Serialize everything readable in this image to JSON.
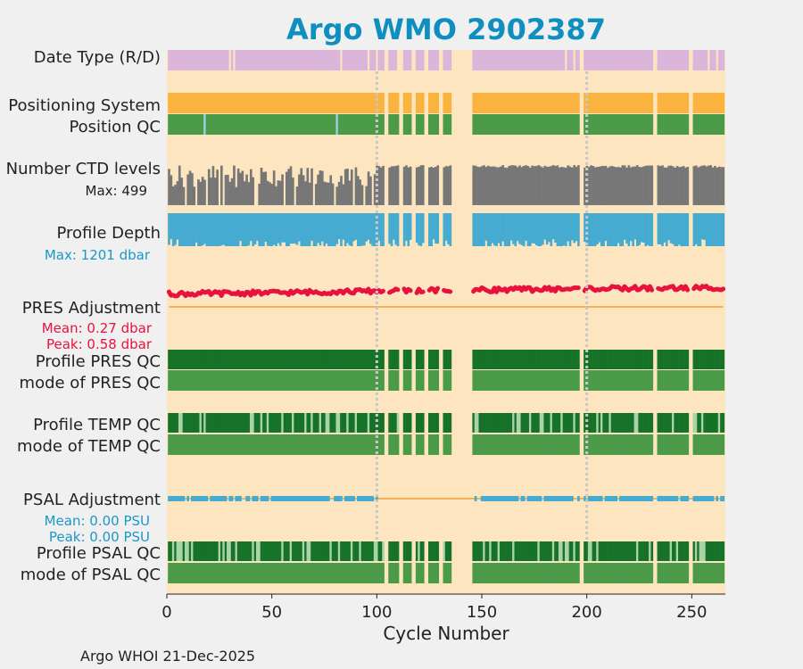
{
  "chart_data": {
    "type": "bar",
    "title": "Argo WMO 2902387",
    "xlabel": "Cycle Number",
    "xlim": [
      0,
      266
    ],
    "xticks": [
      0,
      50,
      100,
      150,
      200,
      250
    ],
    "vlines": [
      100,
      200
    ],
    "missing_ranges": [
      [
        104,
        105
      ],
      [
        111,
        112
      ],
      [
        117,
        118
      ],
      [
        123,
        124
      ],
      [
        130,
        131
      ],
      [
        136,
        145
      ],
      [
        197,
        198
      ],
      [
        232,
        233
      ],
      [
        249,
        250
      ]
    ],
    "row_labels": {
      "date_type": "Date Type (R/D)",
      "positioning": "Positioning System",
      "position_qc": "Position QC",
      "ctd_levels": "Number CTD levels",
      "profile_depth": "Profile Depth",
      "pres_adj": "PRES Adjustment",
      "pres_qc": "Profile PRES QC",
      "pres_qc_mode": "mode of PRES QC",
      "temp_qc": "Profile TEMP QC",
      "temp_qc_mode": "mode of TEMP QC",
      "psal_adj": "PSAL Adjustment",
      "psal_qc": "Profile PSAL QC",
      "psal_qc_mode": "mode of PSAL QC"
    },
    "annotations": {
      "ctd_max": "Max: 499",
      "depth_max": "Max: 1201 dbar",
      "pres_mean": "Mean: 0.27 dbar",
      "pres_peak": "Peak: 0.58 dbar",
      "psal_mean": "Mean: 0.00 PSU",
      "psal_peak": "Peak: 0.00 PSU"
    },
    "stats": {
      "ctd_levels_max": 499,
      "profile_depth_max_dbar": 1201,
      "pres_adjustment_mean_dbar": 0.27,
      "pres_adjustment_peak_dbar": 0.58,
      "psal_adjustment_mean_psu": 0.0,
      "psal_adjustment_peak_psu": 0.0
    },
    "pres_adjustment_trend_dbar": [
      [
        0,
        0.22
      ],
      [
        50,
        0.24
      ],
      [
        100,
        0.27
      ],
      [
        150,
        0.29
      ],
      [
        200,
        0.31
      ],
      [
        266,
        0.33
      ]
    ],
    "qc_flag_1_cycles_position": [
      18,
      81
    ],
    "colors": {
      "background": "#fde6bf",
      "date_type": "#dbb5da",
      "positioning": "#fbb33f",
      "qc_good": "#4a9a48",
      "qc_good_dark": "#167228",
      "qc_light": "#a8d4a8",
      "position_flag": "#a0d0e0",
      "ctd": "#777777",
      "depth": "#46abd0",
      "pres_adj": "#e8123f",
      "psal_adj": "#46abd0",
      "zero_line": "#f0a030",
      "title": "#0f8fbf",
      "depth_label": "#1a98c8",
      "pres_label": "#e8123f",
      "psal_label": "#1a98c8",
      "vline": "#c8c8c8"
    }
  },
  "footer": "Argo WHOI 21-Dec-2025"
}
